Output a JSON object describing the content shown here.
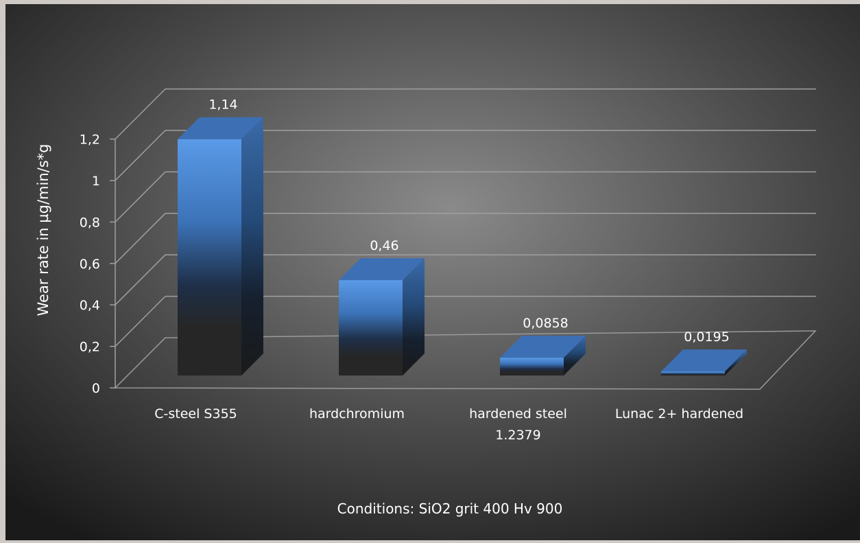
{
  "chart_data": {
    "type": "bar",
    "style": "3d-column",
    "categories": [
      [
        "C-steel S355"
      ],
      [
        "hardchromium"
      ],
      [
        "hardened steel",
        "1.2379"
      ],
      [
        "Lunac 2+ hardened"
      ]
    ],
    "values": [
      1.14,
      0.46,
      0.0858,
      0.0195
    ],
    "data_labels": [
      "1,14",
      "0,46",
      "0,0858",
      "0,0195"
    ],
    "ylabel": "Wear rate in µg/min/s*g",
    "ylim": [
      0,
      1.2
    ],
    "yticks": [
      0,
      0.2,
      0.4,
      0.6,
      0.8,
      1,
      1.2
    ],
    "ytick_labels": [
      "0",
      "0,2",
      "0,4",
      "0,6",
      "0,8",
      "1",
      "1,2"
    ],
    "grid": true,
    "legend": "none",
    "bar_color": "#4f8fe0",
    "background_color": "#3a3a3a"
  },
  "footer_note": "Conditions:  SiO2 grit 400 Hv 900"
}
